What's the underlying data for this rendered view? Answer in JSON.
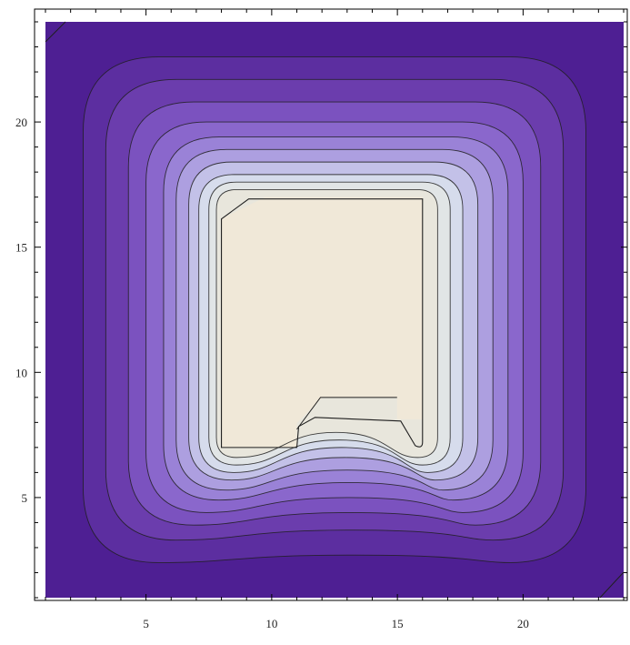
{
  "chart_data": {
    "type": "contour",
    "title": "",
    "xlabel": "",
    "ylabel": "",
    "xlim": [
      1,
      24
    ],
    "ylim": [
      1,
      24
    ],
    "x_ticks": [
      5,
      10,
      15,
      20
    ],
    "y_ticks": [
      5,
      10,
      15,
      20
    ],
    "x_tick_labels": [
      "5",
      "10",
      "15",
      "20"
    ],
    "y_tick_labels": [
      "5",
      "10",
      "15",
      "20"
    ],
    "grid": false,
    "legend": "none",
    "plateau_region": {
      "x_range": [
        8,
        16
      ],
      "y_range": [
        7,
        17
      ],
      "notch": {
        "x_range": [
          11,
          16
        ],
        "y_range": [
          7,
          9
        ]
      }
    },
    "contour_levels": [
      {
        "x_range": [
          2.5,
          22.5
        ],
        "y_range": [
          2.4,
          22.6
        ],
        "corner": 3.0,
        "dip": 0.3
      },
      {
        "x_range": [
          3.4,
          21.6
        ],
        "y_range": [
          3.3,
          21.7
        ],
        "corner": 2.8,
        "dip": 0.4
      },
      {
        "x_range": [
          4.3,
          20.7
        ],
        "y_range": [
          3.9,
          20.8
        ],
        "corner": 2.6,
        "dip": 0.5
      },
      {
        "x_range": [
          5.0,
          20.0
        ],
        "y_range": [
          4.4,
          20.0
        ],
        "corner": 2.4,
        "dip": 0.6
      },
      {
        "x_range": [
          5.7,
          19.4
        ],
        "y_range": [
          4.9,
          19.4
        ],
        "corner": 2.2,
        "dip": 0.7
      },
      {
        "x_range": [
          6.2,
          18.8
        ],
        "y_range": [
          5.3,
          18.9
        ],
        "corner": 2.0,
        "dip": 0.8
      },
      {
        "x_range": [
          6.7,
          18.2
        ],
        "y_range": [
          5.7,
          18.4
        ],
        "corner": 1.7,
        "dip": 0.9
      },
      {
        "x_range": [
          7.1,
          17.6
        ],
        "y_range": [
          6.0,
          17.9
        ],
        "corner": 1.4,
        "dip": 1.0
      },
      {
        "x_range": [
          7.5,
          17.1
        ],
        "y_range": [
          6.3,
          17.6
        ],
        "corner": 1.1,
        "dip": 1.0
      },
      {
        "x_range": [
          7.8,
          16.6
        ],
        "y_range": [
          6.6,
          17.3
        ],
        "corner": 0.8,
        "dip": 1.0
      }
    ],
    "colors": {
      "background_fill": "#4e1f93",
      "contour_fills": [
        "#5c2ea0",
        "#6b3dad",
        "#7b52bf",
        "#8a67cc",
        "#9a82d7",
        "#ad9fe0",
        "#c3c1e8",
        "#d6dcec",
        "#e1e5e6",
        "#e8e6dc"
      ],
      "plateau_fill": "#f0e8d8",
      "contour_line": "#1f1f1f",
      "frame": "#000000"
    }
  }
}
